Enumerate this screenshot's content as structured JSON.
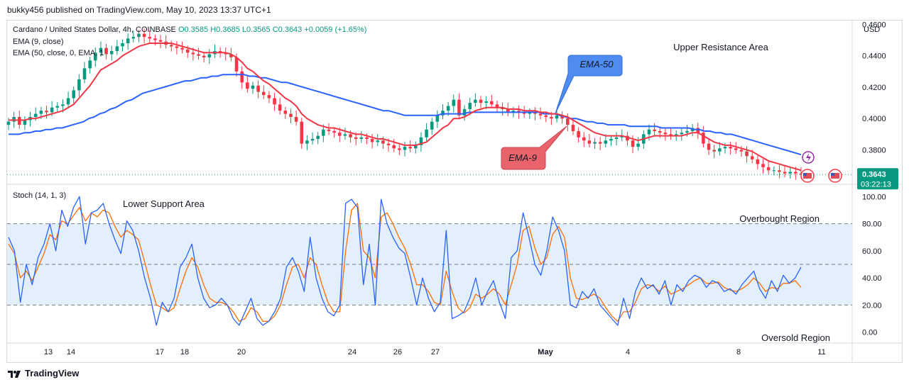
{
  "attribution": "bukky456 published on TradingView.com, May 10, 2023 13:37 UTC+1",
  "footer": {
    "brand": "TradingView",
    "logo_icon": "tradingview-logo-icon"
  },
  "legend": {
    "symbol": "Cardano / United States Dollar, 4h, COINBASE",
    "open": "O0.3585",
    "high": "H0.3685",
    "low": "L0.3565",
    "close": "C0.3643",
    "change": "+0.0059 (+1.65%)",
    "ema9": "EMA (9, close)",
    "ema50": "EMA (50, close, 0, EMA, 1",
    "stoch": "Stoch (14, 1, 3)"
  },
  "colors": {
    "up": "#089981",
    "down": "#f23645",
    "ema50": "#2962ff",
    "ema9": "#f23645",
    "k_line": "#2962ff",
    "d_line": "#ff6d00",
    "band": "#e3effd",
    "callout_blue": "#4f8cf0",
    "callout_red": "#e8636a"
  },
  "chart_data": [
    {
      "type": "candlestick",
      "title": "Cardano / United States Dollar, 4h, COINBASE",
      "ylabel": "USD",
      "ylim": [
        0.359,
        0.462
      ],
      "y_ticks": [
        "0.4600",
        "0.4400",
        "0.4200",
        "0.4000",
        "0.3800"
      ],
      "x_ticks": [
        "13",
        "14",
        "17",
        "18",
        "20",
        "24",
        "26",
        "27",
        "May",
        "4",
        "8",
        "11"
      ],
      "last_price": "0.3643",
      "countdown": "03:22:13",
      "annotations": [
        "Upper Resistance Area",
        "EMA-50",
        "EMA-9"
      ],
      "close": [
        0.398,
        0.401,
        0.396,
        0.399,
        0.401,
        0.403,
        0.405,
        0.404,
        0.407,
        0.408,
        0.409,
        0.413,
        0.418,
        0.425,
        0.432,
        0.437,
        0.442,
        0.445,
        0.441,
        0.443,
        0.446,
        0.448,
        0.451,
        0.452,
        0.454,
        0.452,
        0.451,
        0.45,
        0.449,
        0.447,
        0.446,
        0.445,
        0.444,
        0.442,
        0.441,
        0.44,
        0.439,
        0.441,
        0.443,
        0.442,
        0.441,
        0.439,
        0.43,
        0.423,
        0.419,
        0.421,
        0.417,
        0.415,
        0.413,
        0.409,
        0.405,
        0.403,
        0.401,
        0.398,
        0.384,
        0.386,
        0.387,
        0.389,
        0.393,
        0.392,
        0.391,
        0.389,
        0.39,
        0.388,
        0.387,
        0.388,
        0.387,
        0.385,
        0.386,
        0.384,
        0.383,
        0.381,
        0.38,
        0.382,
        0.381,
        0.383,
        0.388,
        0.393,
        0.398,
        0.402,
        0.405,
        0.408,
        0.412,
        0.402,
        0.406,
        0.41,
        0.412,
        0.41,
        0.411,
        0.409,
        0.407,
        0.406,
        0.404,
        0.405,
        0.404,
        0.403,
        0.404,
        0.403,
        0.402,
        0.401,
        0.4,
        0.402,
        0.4,
        0.396,
        0.392,
        0.388,
        0.386,
        0.384,
        0.385,
        0.384,
        0.386,
        0.387,
        0.388,
        0.389,
        0.386,
        0.382,
        0.384,
        0.39,
        0.393,
        0.392,
        0.391,
        0.39,
        0.389,
        0.39,
        0.391,
        0.392,
        0.394,
        0.391,
        0.384,
        0.38,
        0.379,
        0.381,
        0.382,
        0.381,
        0.38,
        0.379,
        0.376,
        0.374,
        0.371,
        0.369,
        0.367,
        0.367,
        0.366,
        0.365,
        0.366,
        0.365,
        0.3643
      ],
      "series": [
        {
          "name": "EMA (9, close)",
          "values": [
            0.399,
            0.399,
            0.399,
            0.399,
            0.4,
            0.4,
            0.401,
            0.402,
            0.403,
            0.404,
            0.405,
            0.407,
            0.409,
            0.413,
            0.417,
            0.421,
            0.426,
            0.431,
            0.433,
            0.435,
            0.437,
            0.44,
            0.442,
            0.444,
            0.446,
            0.447,
            0.448,
            0.448,
            0.448,
            0.448,
            0.448,
            0.447,
            0.446,
            0.445,
            0.444,
            0.443,
            0.442,
            0.442,
            0.442,
            0.442,
            0.442,
            0.441,
            0.439,
            0.436,
            0.432,
            0.43,
            0.427,
            0.424,
            0.422,
            0.419,
            0.416,
            0.413,
            0.411,
            0.408,
            0.403,
            0.4,
            0.398,
            0.396,
            0.395,
            0.394,
            0.394,
            0.393,
            0.392,
            0.391,
            0.39,
            0.39,
            0.389,
            0.388,
            0.387,
            0.387,
            0.386,
            0.385,
            0.384,
            0.383,
            0.383,
            0.383,
            0.384,
            0.385,
            0.388,
            0.391,
            0.394,
            0.396,
            0.4,
            0.4,
            0.401,
            0.403,
            0.405,
            0.406,
            0.407,
            0.407,
            0.407,
            0.407,
            0.406,
            0.406,
            0.406,
            0.405,
            0.405,
            0.405,
            0.404,
            0.404,
            0.403,
            0.403,
            0.402,
            0.401,
            0.399,
            0.397,
            0.395,
            0.393,
            0.391,
            0.39,
            0.389,
            0.389,
            0.389,
            0.389,
            0.388,
            0.387,
            0.386,
            0.387,
            0.388,
            0.389,
            0.389,
            0.389,
            0.389,
            0.389,
            0.389,
            0.39,
            0.391,
            0.391,
            0.389,
            0.387,
            0.385,
            0.384,
            0.383,
            0.383,
            0.382,
            0.381,
            0.38,
            0.379,
            0.377,
            0.375,
            0.373,
            0.372,
            0.371,
            0.37,
            0.369,
            0.368,
            0.367
          ]
        },
        {
          "name": "EMA (50, close, 0, EMA, 1",
          "values": [
            0.39,
            0.39,
            0.39,
            0.391,
            0.391,
            0.392,
            0.392,
            0.393,
            0.393,
            0.394,
            0.394,
            0.395,
            0.396,
            0.397,
            0.398,
            0.4,
            0.401,
            0.403,
            0.404,
            0.406,
            0.407,
            0.409,
            0.411,
            0.412,
            0.414,
            0.416,
            0.417,
            0.418,
            0.419,
            0.42,
            0.421,
            0.422,
            0.423,
            0.424,
            0.424,
            0.425,
            0.426,
            0.426,
            0.427,
            0.427,
            0.428,
            0.428,
            0.428,
            0.428,
            0.428,
            0.427,
            0.427,
            0.426,
            0.426,
            0.425,
            0.424,
            0.423,
            0.423,
            0.422,
            0.421,
            0.42,
            0.419,
            0.418,
            0.417,
            0.416,
            0.415,
            0.414,
            0.413,
            0.412,
            0.411,
            0.41,
            0.409,
            0.408,
            0.407,
            0.406,
            0.405,
            0.405,
            0.404,
            0.403,
            0.402,
            0.402,
            0.402,
            0.402,
            0.402,
            0.402,
            0.402,
            0.403,
            0.403,
            0.403,
            0.403,
            0.403,
            0.404,
            0.404,
            0.404,
            0.404,
            0.404,
            0.404,
            0.404,
            0.404,
            0.404,
            0.404,
            0.404,
            0.404,
            0.404,
            0.404,
            0.403,
            0.403,
            0.403,
            0.402,
            0.401,
            0.4,
            0.4,
            0.399,
            0.398,
            0.398,
            0.397,
            0.397,
            0.396,
            0.396,
            0.396,
            0.396,
            0.395,
            0.395,
            0.395,
            0.395,
            0.395,
            0.395,
            0.394,
            0.394,
            0.394,
            0.394,
            0.394,
            0.394,
            0.393,
            0.393,
            0.392,
            0.392,
            0.391,
            0.391,
            0.39,
            0.39,
            0.389,
            0.388,
            0.387,
            0.386,
            0.385,
            0.384,
            0.383,
            0.382,
            0.381,
            0.38,
            0.379,
            0.378,
            0.377
          ]
        }
      ]
    },
    {
      "type": "line",
      "title": "Stoch (14, 1, 3)",
      "ylim": [
        -7,
        108
      ],
      "y_ticks": [
        "100.00",
        "80.00",
        "60.00",
        "40.00",
        "20.00",
        "0.00"
      ],
      "bands": {
        "upper": 80,
        "middle": 50,
        "lower": 20
      },
      "annotations": [
        "Lower Support Area",
        "Overbought Region",
        "Oversold Region"
      ],
      "series": [
        {
          "name": "%K",
          "values": [
            70,
            60,
            22,
            50,
            35,
            55,
            65,
            80,
            60,
            90,
            78,
            92,
            100,
            65,
            88,
            90,
            95,
            80,
            68,
            58,
            82,
            75,
            60,
            40,
            25,
            5,
            22,
            15,
            25,
            48,
            55,
            65,
            40,
            25,
            18,
            20,
            25,
            20,
            10,
            5,
            15,
            25,
            10,
            5,
            8,
            15,
            25,
            48,
            55,
            45,
            30,
            70,
            40,
            25,
            15,
            12,
            20,
            95,
            98,
            92,
            35,
            65,
            20,
            98,
            80,
            70,
            62,
            58,
            40,
            20,
            40,
            25,
            15,
            22,
            75,
            10,
            12,
            15,
            25,
            40,
            20,
            30,
            38,
            22,
            10,
            55,
            60,
            88,
            70,
            50,
            42,
            60,
            85,
            75,
            60,
            20,
            18,
            30,
            25,
            32,
            20,
            15,
            10,
            5,
            25,
            10,
            30,
            40,
            32,
            35,
            28,
            38,
            20,
            35,
            30,
            38,
            42,
            40,
            33,
            38,
            36,
            30,
            32,
            28,
            35,
            40,
            45,
            32,
            25,
            38,
            30,
            42,
            36,
            40,
            48
          ]
        },
        {
          "name": "%D",
          "values": [
            65,
            58,
            40,
            45,
            38,
            48,
            58,
            72,
            68,
            82,
            80,
            86,
            92,
            82,
            88,
            85,
            90,
            88,
            78,
            70,
            75,
            72,
            68,
            52,
            35,
            20,
            18,
            15,
            18,
            32,
            45,
            55,
            48,
            35,
            25,
            22,
            22,
            20,
            15,
            8,
            10,
            18,
            15,
            8,
            8,
            12,
            20,
            35,
            48,
            50,
            40,
            55,
            50,
            35,
            22,
            15,
            15,
            60,
            90,
            95,
            60,
            55,
            40,
            85,
            88,
            80,
            70,
            62,
            50,
            35,
            35,
            30,
            22,
            20,
            45,
            30,
            18,
            14,
            18,
            28,
            25,
            28,
            32,
            28,
            20,
            35,
            50,
            75,
            78,
            62,
            50,
            55,
            72,
            78,
            70,
            40,
            25,
            24,
            26,
            28,
            25,
            18,
            12,
            8,
            15,
            15,
            22,
            32,
            35,
            34,
            30,
            34,
            28,
            30,
            32,
            35,
            38,
            40,
            36,
            36,
            37,
            33,
            31,
            30,
            32,
            35,
            40,
            36,
            30,
            33,
            32,
            36,
            36,
            38,
            33
          ]
        }
      ]
    }
  ]
}
